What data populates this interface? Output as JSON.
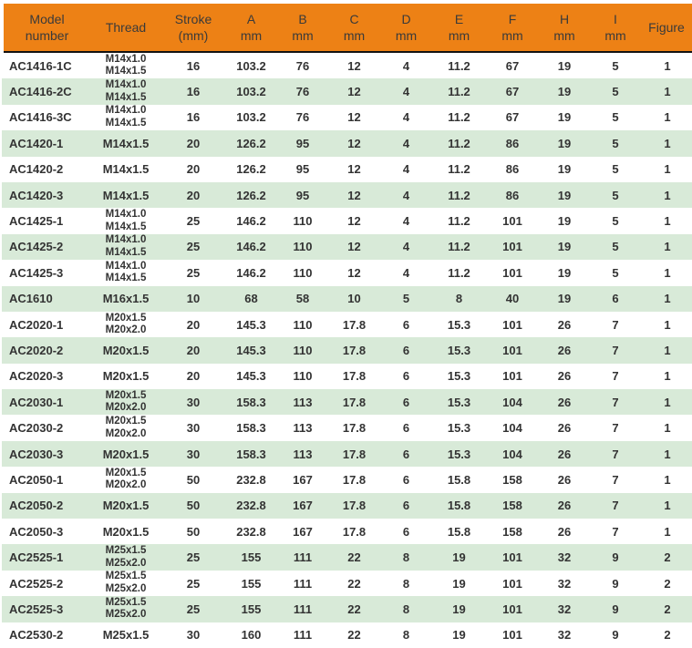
{
  "colors": {
    "header_bg": "#ED8115",
    "header_text": "#3a3a3a",
    "header_divider": "#121212",
    "row_stripe_green": "#D8EAD8",
    "row_white": "#FFFFFF",
    "body_text": "#333333"
  },
  "table": {
    "columns": [
      "Model\nnumber",
      "Thread",
      "Stroke\n(mm)",
      "A\nmm",
      "B\nmm",
      "C\nmm",
      "D\nmm",
      "E\nmm",
      "F\nmm",
      "H\nmm",
      "I\nmm",
      "Figure"
    ],
    "rows": [
      {
        "model": "AC1416-1C",
        "thread": "M14x1.0\nM14x1.5",
        "stroke": "16",
        "a": "103.2",
        "b": "76",
        "c": "12",
        "d": "4",
        "e": "11.2",
        "f": "67",
        "h": "19",
        "i": "5",
        "figure": "1"
      },
      {
        "model": "AC1416-2C",
        "thread": "M14x1.0\nM14x1.5",
        "stroke": "16",
        "a": "103.2",
        "b": "76",
        "c": "12",
        "d": "4",
        "e": "11.2",
        "f": "67",
        "h": "19",
        "i": "5",
        "figure": "1"
      },
      {
        "model": "AC1416-3C",
        "thread": "M14x1.0\nM14x1.5",
        "stroke": "16",
        "a": "103.2",
        "b": "76",
        "c": "12",
        "d": "4",
        "e": "11.2",
        "f": "67",
        "h": "19",
        "i": "5",
        "figure": "1"
      },
      {
        "model": "AC1420-1",
        "thread": "M14x1.5",
        "stroke": "20",
        "a": "126.2",
        "b": "95",
        "c": "12",
        "d": "4",
        "e": "11.2",
        "f": "86",
        "h": "19",
        "i": "5",
        "figure": "1"
      },
      {
        "model": "AC1420-2",
        "thread": "M14x1.5",
        "stroke": "20",
        "a": "126.2",
        "b": "95",
        "c": "12",
        "d": "4",
        "e": "11.2",
        "f": "86",
        "h": "19",
        "i": "5",
        "figure": "1"
      },
      {
        "model": "AC1420-3",
        "thread": "M14x1.5",
        "stroke": "20",
        "a": "126.2",
        "b": "95",
        "c": "12",
        "d": "4",
        "e": "11.2",
        "f": "86",
        "h": "19",
        "i": "5",
        "figure": "1"
      },
      {
        "model": "AC1425-1",
        "thread": "M14x1.0\nM14x1.5",
        "stroke": "25",
        "a": "146.2",
        "b": "110",
        "c": "12",
        "d": "4",
        "e": "11.2",
        "f": "101",
        "h": "19",
        "i": "5",
        "figure": "1"
      },
      {
        "model": "AC1425-2",
        "thread": "M14x1.0\nM14x1.5",
        "stroke": "25",
        "a": "146.2",
        "b": "110",
        "c": "12",
        "d": "4",
        "e": "11.2",
        "f": "101",
        "h": "19",
        "i": "5",
        "figure": "1"
      },
      {
        "model": "AC1425-3",
        "thread": "M14x1.0\nM14x1.5",
        "stroke": "25",
        "a": "146.2",
        "b": "110",
        "c": "12",
        "d": "4",
        "e": "11.2",
        "f": "101",
        "h": "19",
        "i": "5",
        "figure": "1"
      },
      {
        "model": "AC1610",
        "thread": "M16x1.5",
        "stroke": "10",
        "a": "68",
        "b": "58",
        "c": "10",
        "d": "5",
        "e": "8",
        "f": "40",
        "h": "19",
        "i": "6",
        "figure": "1"
      },
      {
        "model": "AC2020-1",
        "thread": "M20x1.5\nM20x2.0",
        "stroke": "20",
        "a": "145.3",
        "b": "110",
        "c": "17.8",
        "d": "6",
        "e": "15.3",
        "f": "101",
        "h": "26",
        "i": "7",
        "figure": "1"
      },
      {
        "model": "AC2020-2",
        "thread": "M20x1.5",
        "stroke": "20",
        "a": "145.3",
        "b": "110",
        "c": "17.8",
        "d": "6",
        "e": "15.3",
        "f": "101",
        "h": "26",
        "i": "7",
        "figure": "1"
      },
      {
        "model": "AC2020-3",
        "thread": "M20x1.5",
        "stroke": "20",
        "a": "145.3",
        "b": "110",
        "c": "17.8",
        "d": "6",
        "e": "15.3",
        "f": "101",
        "h": "26",
        "i": "7",
        "figure": "1"
      },
      {
        "model": "AC2030-1",
        "thread": "M20x1.5\nM20x2.0",
        "stroke": "30",
        "a": "158.3",
        "b": "113",
        "c": "17.8",
        "d": "6",
        "e": "15.3",
        "f": "104",
        "h": "26",
        "i": "7",
        "figure": "1"
      },
      {
        "model": "AC2030-2",
        "thread": "M20x1.5\nM20x2.0",
        "stroke": "30",
        "a": "158.3",
        "b": "113",
        "c": "17.8",
        "d": "6",
        "e": "15.3",
        "f": "104",
        "h": "26",
        "i": "7",
        "figure": "1"
      },
      {
        "model": "AC2030-3",
        "thread": "M20x1.5",
        "stroke": "30",
        "a": "158.3",
        "b": "113",
        "c": "17.8",
        "d": "6",
        "e": "15.3",
        "f": "104",
        "h": "26",
        "i": "7",
        "figure": "1"
      },
      {
        "model": "AC2050-1",
        "thread": "M20x1.5\nM20x2.0",
        "stroke": "50",
        "a": "232.8",
        "b": "167",
        "c": "17.8",
        "d": "6",
        "e": "15.8",
        "f": "158",
        "h": "26",
        "i": "7",
        "figure": "1"
      },
      {
        "model": "AC2050-2",
        "thread": "M20x1.5",
        "stroke": "50",
        "a": "232.8",
        "b": "167",
        "c": "17.8",
        "d": "6",
        "e": "15.8",
        "f": "158",
        "h": "26",
        "i": "7",
        "figure": "1"
      },
      {
        "model": "AC2050-3",
        "thread": "M20x1.5",
        "stroke": "50",
        "a": "232.8",
        "b": "167",
        "c": "17.8",
        "d": "6",
        "e": "15.8",
        "f": "158",
        "h": "26",
        "i": "7",
        "figure": "1"
      },
      {
        "model": "AC2525-1",
        "thread": "M25x1.5\nM25x2.0",
        "stroke": "25",
        "a": "155",
        "b": "111",
        "c": "22",
        "d": "8",
        "e": "19",
        "f": "101",
        "h": "32",
        "i": "9",
        "figure": "2"
      },
      {
        "model": "AC2525-2",
        "thread": "M25x1.5\nM25x2.0",
        "stroke": "25",
        "a": "155",
        "b": "111",
        "c": "22",
        "d": "8",
        "e": "19",
        "f": "101",
        "h": "32",
        "i": "9",
        "figure": "2"
      },
      {
        "model": "AC2525-3",
        "thread": "M25x1.5\nM25x2.0",
        "stroke": "25",
        "a": "155",
        "b": "111",
        "c": "22",
        "d": "8",
        "e": "19",
        "f": "101",
        "h": "32",
        "i": "9",
        "figure": "2"
      },
      {
        "model": "AC2530-2",
        "thread": "M25x1.5",
        "stroke": "30",
        "a": "160",
        "b": "111",
        "c": "22",
        "d": "8",
        "e": "19",
        "f": "101",
        "h": "32",
        "i": "9",
        "figure": "2"
      }
    ]
  }
}
